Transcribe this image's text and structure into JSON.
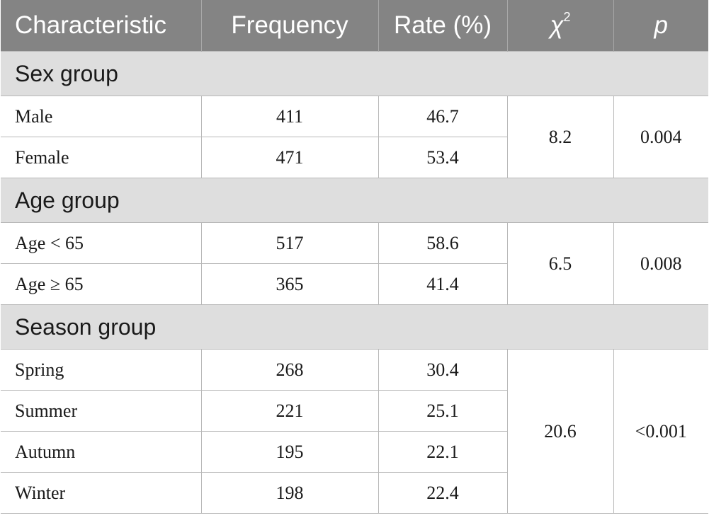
{
  "header": {
    "characteristic": "Characteristic",
    "frequency": "Frequency",
    "rate": "Rate (%)",
    "chi_symbol": "χ",
    "chi_superscript": "2",
    "p": "p"
  },
  "groups": [
    {
      "title": "Sex group",
      "chi2": "8.2",
      "p": "0.004",
      "rows": [
        {
          "label": "Male",
          "frequency": "411",
          "rate": "46.7"
        },
        {
          "label": "Female",
          "frequency": "471",
          "rate": "53.4"
        }
      ]
    },
    {
      "title": "Age group",
      "chi2": "6.5",
      "p": "0.008",
      "rows": [
        {
          "label": "Age < 65",
          "frequency": "517",
          "rate": "58.6"
        },
        {
          "label": "Age ≥ 65",
          "frequency": "365",
          "rate": "41.4"
        }
      ]
    },
    {
      "title": "Season group",
      "chi2": "20.6",
      "p": "<0.001",
      "rows": [
        {
          "label": "Spring",
          "frequency": "268",
          "rate": "30.4"
        },
        {
          "label": "Summer",
          "frequency": "221",
          "rate": "25.1"
        },
        {
          "label": "Autumn",
          "frequency": "195",
          "rate": "22.1"
        },
        {
          "label": "Winter",
          "frequency": "198",
          "rate": "22.4"
        }
      ]
    }
  ]
}
